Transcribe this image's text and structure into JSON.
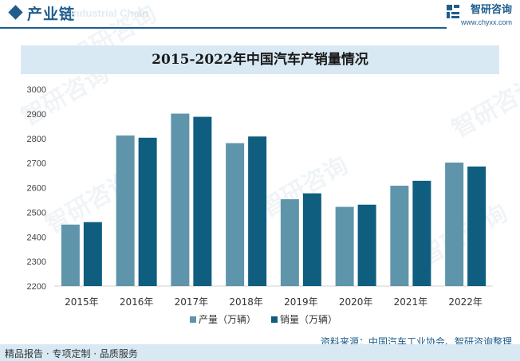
{
  "header": {
    "section_title": "产业链",
    "section_subtitle": "Industrial Chain",
    "brand_name": "智研咨询",
    "brand_url": "www.chyxx.com"
  },
  "watermark_text": "智研咨询",
  "colors": {
    "primary": "#1f5d8c",
    "production": "#5f95aa",
    "sales": "#0f5e80",
    "title_bg": "#d8e9f4"
  },
  "chart_data": {
    "type": "bar",
    "title": "2015-2022年中国汽车产销量情况",
    "categories": [
      "2015年",
      "2016年",
      "2017年",
      "2018年",
      "2019年",
      "2020年",
      "2021年",
      "2022年"
    ],
    "series": [
      {
        "name": "产量（万辆）",
        "values": [
          2450,
          2812,
          2901,
          2781,
          2553,
          2522,
          2608,
          2702
        ]
      },
      {
        "name": "销量（万辆）",
        "values": [
          2460,
          2803,
          2888,
          2808,
          2577,
          2531,
          2628,
          2686
        ]
      }
    ],
    "ylim": [
      2200,
      3000
    ],
    "yticks": [
      2200,
      2300,
      2400,
      2500,
      2600,
      2700,
      2800,
      2900,
      3000
    ],
    "xlabel": "",
    "ylabel": "",
    "legend_position": "bottom-center",
    "grid": false
  },
  "footer": {
    "left_text": "精品报告 · 专项定制 · 品质服务",
    "source": "资料来源：中国汽车工业协会、智研咨询整理"
  }
}
